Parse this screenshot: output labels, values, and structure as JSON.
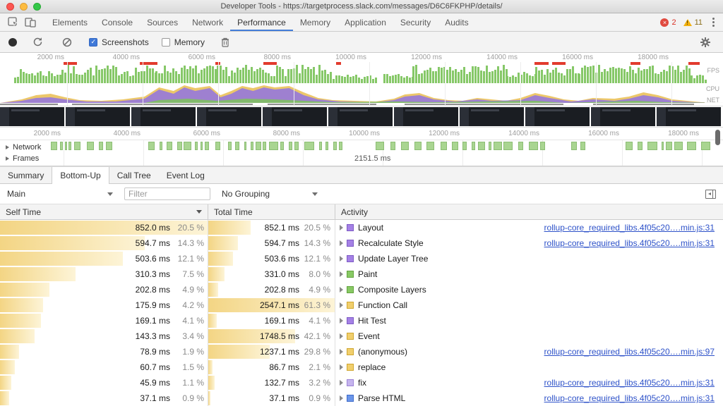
{
  "window": {
    "title": "Developer Tools - https://targetprocess.slack.com/messages/D6C6FKPHP/details/"
  },
  "devtools_tabs": {
    "items": [
      "Elements",
      "Console",
      "Sources",
      "Network",
      "Performance",
      "Memory",
      "Application",
      "Security",
      "Audits"
    ],
    "active": "Performance",
    "error_count": "2",
    "warning_count": "11"
  },
  "toolbar": {
    "screenshots_label": "Screenshots",
    "memory_label": "Memory"
  },
  "overview": {
    "time_labels": [
      "2000 ms",
      "4000 ms",
      "6000 ms",
      "8000 ms",
      "10000 ms",
      "12000 ms",
      "14000 ms",
      "16000 ms",
      "18000 ms"
    ],
    "side_labels": [
      "FPS",
      "CPU",
      "NET"
    ],
    "fps_segments": [
      [
        0.02,
        0.085,
        8,
        20
      ],
      [
        0.085,
        0.215,
        10,
        26
      ],
      [
        0.215,
        0.3,
        12,
        26
      ],
      [
        0.3,
        0.46,
        10,
        26
      ],
      [
        0.46,
        0.52,
        4,
        12
      ],
      [
        0.53,
        0.57,
        8,
        18
      ],
      [
        0.57,
        0.7,
        12,
        26
      ],
      [
        0.7,
        0.74,
        6,
        16
      ],
      [
        0.74,
        0.8,
        10,
        24
      ],
      [
        0.8,
        0.955,
        12,
        26
      ],
      [
        0.955,
        0.975,
        5,
        12
      ]
    ],
    "red_markers": [
      [
        0.088,
        0.107
      ],
      [
        0.193,
        0.217
      ],
      [
        0.298,
        0.305
      ],
      [
        0.364,
        0.383
      ],
      [
        0.465,
        0.472
      ],
      [
        0.739,
        0.759
      ],
      [
        0.764,
        0.783
      ],
      [
        0.872,
        0.886
      ],
      [
        0.952,
        0.968
      ]
    ],
    "cpu_series": [
      {
        "color": "#ecc76a",
        "opacity": 1,
        "points": [
          [
            0,
            0
          ],
          [
            0.03,
            5
          ],
          [
            0.05,
            11
          ],
          [
            0.07,
            13
          ],
          [
            0.09,
            8
          ],
          [
            0.11,
            4
          ],
          [
            0.14,
            3
          ],
          [
            0.17,
            5
          ],
          [
            0.2,
            9
          ],
          [
            0.22,
            22
          ],
          [
            0.24,
            17
          ],
          [
            0.255,
            25
          ],
          [
            0.27,
            21
          ],
          [
            0.29,
            24
          ],
          [
            0.305,
            11
          ],
          [
            0.32,
            17
          ],
          [
            0.335,
            24
          ],
          [
            0.35,
            21
          ],
          [
            0.365,
            25
          ],
          [
            0.38,
            22
          ],
          [
            0.4,
            24
          ],
          [
            0.42,
            15
          ],
          [
            0.44,
            7
          ],
          [
            0.46,
            4
          ],
          [
            0.49,
            3
          ],
          [
            0.52,
            2
          ],
          [
            0.545,
            6
          ],
          [
            0.56,
            12
          ],
          [
            0.58,
            14
          ],
          [
            0.6,
            7
          ],
          [
            0.62,
            4
          ],
          [
            0.64,
            3
          ],
          [
            0.66,
            7
          ],
          [
            0.68,
            5
          ],
          [
            0.7,
            3
          ],
          [
            0.72,
            7
          ],
          [
            0.74,
            14
          ],
          [
            0.76,
            10
          ],
          [
            0.78,
            5
          ],
          [
            0.8,
            3
          ],
          [
            0.82,
            7
          ],
          [
            0.85,
            6
          ],
          [
            0.87,
            9
          ],
          [
            0.89,
            15
          ],
          [
            0.91,
            11
          ],
          [
            0.93,
            5
          ],
          [
            0.95,
            3
          ],
          [
            0.97,
            1
          ],
          [
            1,
            0
          ]
        ]
      },
      {
        "color": "#9a7cd6",
        "opacity": 0.95,
        "points": [
          [
            0,
            0
          ],
          [
            0.03,
            3
          ],
          [
            0.05,
            7
          ],
          [
            0.07,
            8
          ],
          [
            0.09,
            5
          ],
          [
            0.12,
            2
          ],
          [
            0.16,
            2
          ],
          [
            0.2,
            6
          ],
          [
            0.22,
            19
          ],
          [
            0.24,
            13
          ],
          [
            0.255,
            22
          ],
          [
            0.27,
            17
          ],
          [
            0.29,
            21
          ],
          [
            0.305,
            8
          ],
          [
            0.32,
            13
          ],
          [
            0.335,
            21
          ],
          [
            0.35,
            17
          ],
          [
            0.365,
            22
          ],
          [
            0.38,
            19
          ],
          [
            0.4,
            21
          ],
          [
            0.42,
            11
          ],
          [
            0.44,
            5
          ],
          [
            0.47,
            2
          ],
          [
            0.52,
            1
          ],
          [
            0.545,
            4
          ],
          [
            0.56,
            9
          ],
          [
            0.58,
            11
          ],
          [
            0.6,
            5
          ],
          [
            0.63,
            2
          ],
          [
            0.66,
            5
          ],
          [
            0.68,
            3
          ],
          [
            0.72,
            4
          ],
          [
            0.74,
            11
          ],
          [
            0.76,
            7
          ],
          [
            0.79,
            2
          ],
          [
            0.82,
            5
          ],
          [
            0.85,
            3
          ],
          [
            0.87,
            6
          ],
          [
            0.89,
            11
          ],
          [
            0.91,
            8
          ],
          [
            0.93,
            3
          ],
          [
            0.96,
            1
          ],
          [
            1,
            0
          ]
        ]
      },
      {
        "color": "#7fbf62",
        "opacity": 0.9,
        "points": [
          [
            0,
            0
          ],
          [
            0.2,
            0
          ],
          [
            0.22,
            4
          ],
          [
            0.26,
            6
          ],
          [
            0.3,
            3
          ],
          [
            0.34,
            6
          ],
          [
            0.38,
            5
          ],
          [
            0.42,
            3
          ],
          [
            0.46,
            1
          ],
          [
            0.55,
            2
          ],
          [
            0.6,
            1
          ],
          [
            0.74,
            3
          ],
          [
            0.78,
            0
          ],
          [
            0.88,
            3
          ],
          [
            0.92,
            1
          ],
          [
            1,
            0
          ]
        ]
      }
    ],
    "net_segments": [
      [
        0.0,
        0.08
      ],
      [
        0.1,
        0.35
      ],
      [
        0.37,
        0.52
      ],
      [
        0.56,
        0.78
      ],
      [
        0.82,
        0.96
      ]
    ]
  },
  "filmstrip": {
    "frame_count": 11
  },
  "flame_ruler": {
    "time_labels": [
      "2000 ms",
      "4000 ms",
      "6000 ms",
      "8000 ms",
      "10000 ms",
      "12000 ms",
      "14000 ms",
      "16000 ms",
      "18000 ms"
    ]
  },
  "tracks": {
    "network_label": "Network",
    "frames_label": "Frames",
    "frame_duration_label": "2151.5 ms",
    "frame_bar_segments": [
      [
        0.07,
        0.15
      ],
      [
        0.205,
        0.31
      ],
      [
        0.315,
        0.475
      ],
      [
        0.52,
        0.545
      ],
      [
        0.555,
        0.625
      ],
      [
        0.64,
        0.755
      ],
      [
        0.79,
        0.81
      ],
      [
        0.865,
        0.985
      ]
    ]
  },
  "bottom_tabs": {
    "items": [
      "Summary",
      "Bottom-Up",
      "Call Tree",
      "Event Log"
    ],
    "active": "Bottom-Up"
  },
  "filter_bar": {
    "thread_select": "Main",
    "filter_placeholder": "Filter",
    "grouping_select": "No Grouping"
  },
  "table": {
    "columns": [
      "Self Time",
      "Total Time",
      "Activity"
    ],
    "rows": [
      {
        "self": "852.0 ms",
        "self_pct": "20.5 %",
        "self_bar": 1.0,
        "total": "852.1 ms",
        "total_pct": "20.5 %",
        "total_bar": 0.335,
        "activity": "Layout",
        "fill": "#a581e6",
        "border": "#7d5bc4",
        "link": "rollup-core_required_libs.4f05c20….min.js:31"
      },
      {
        "self": "594.7 ms",
        "self_pct": "14.3 %",
        "self_bar": 0.698,
        "total": "594.7 ms",
        "total_pct": "14.3 %",
        "total_bar": 0.234,
        "activity": "Recalculate Style",
        "fill": "#a581e6",
        "border": "#7d5bc4",
        "link": "rollup-core_required_libs.4f05c20….min.js:31"
      },
      {
        "self": "503.6 ms",
        "self_pct": "12.1 %",
        "self_bar": 0.591,
        "total": "503.6 ms",
        "total_pct": "12.1 %",
        "total_bar": 0.198,
        "activity": "Update Layer Tree",
        "fill": "#a581e6",
        "border": "#7d5bc4",
        "link": ""
      },
      {
        "self": "310.3 ms",
        "self_pct": "7.5 %",
        "self_bar": 0.364,
        "total": "331.0 ms",
        "total_pct": "8.0 %",
        "total_bar": 0.13,
        "activity": "Paint",
        "fill": "#88c964",
        "border": "#62a23e",
        "link": ""
      },
      {
        "self": "202.8 ms",
        "self_pct": "4.9 %",
        "self_bar": 0.238,
        "total": "202.8 ms",
        "total_pct": "4.9 %",
        "total_bar": 0.08,
        "activity": "Composite Layers",
        "fill": "#88c964",
        "border": "#62a23e",
        "link": ""
      },
      {
        "self": "175.9 ms",
        "self_pct": "4.2 %",
        "self_bar": 0.206,
        "total": "2547.1 ms",
        "total_pct": "61.3 %",
        "total_bar": 1.0,
        "activity": "Function Call",
        "fill": "#f1cf6d",
        "border": "#cfa630",
        "link": ""
      },
      {
        "self": "169.1 ms",
        "self_pct": "4.1 %",
        "self_bar": 0.198,
        "total": "169.1 ms",
        "total_pct": "4.1 %",
        "total_bar": 0.066,
        "activity": "Hit Test",
        "fill": "#a581e6",
        "border": "#7d5bc4",
        "link": ""
      },
      {
        "self": "143.3 ms",
        "self_pct": "3.4 %",
        "self_bar": 0.168,
        "total": "1748.5 ms",
        "total_pct": "42.1 %",
        "total_bar": 0.687,
        "activity": "Event",
        "fill": "#f1cf6d",
        "border": "#cfa630",
        "link": ""
      },
      {
        "self": "78.9 ms",
        "self_pct": "1.9 %",
        "self_bar": 0.093,
        "total": "1237.1 ms",
        "total_pct": "29.8 %",
        "total_bar": 0.486,
        "activity": "(anonymous)",
        "fill": "#f1cf6d",
        "border": "#cfa630",
        "link": "rollup-core_required_libs.4f05c20….min.js:97"
      },
      {
        "self": "60.7 ms",
        "self_pct": "1.5 %",
        "self_bar": 0.071,
        "total": "86.7 ms",
        "total_pct": "2.1 %",
        "total_bar": 0.034,
        "activity": "replace",
        "fill": "#f1cf6d",
        "border": "#cfa630",
        "link": ""
      },
      {
        "self": "45.9 ms",
        "self_pct": "1.1 %",
        "self_bar": 0.054,
        "total": "132.7 ms",
        "total_pct": "3.2 %",
        "total_bar": 0.052,
        "activity": "fix",
        "fill": "#c6b5ee",
        "border": "#9d84d6",
        "link": "rollup-core_required_libs.4f05c20….min.js:31"
      },
      {
        "self": "37.1 ms",
        "self_pct": "0.9 %",
        "self_bar": 0.044,
        "total": "37.1 ms",
        "total_pct": "0.9 %",
        "total_bar": 0.015,
        "activity": "Parse HTML",
        "fill": "#6b96ea",
        "border": "#3f6cc9",
        "link": "rollup-core_required_libs.4f05c20….min.js:31"
      }
    ]
  }
}
